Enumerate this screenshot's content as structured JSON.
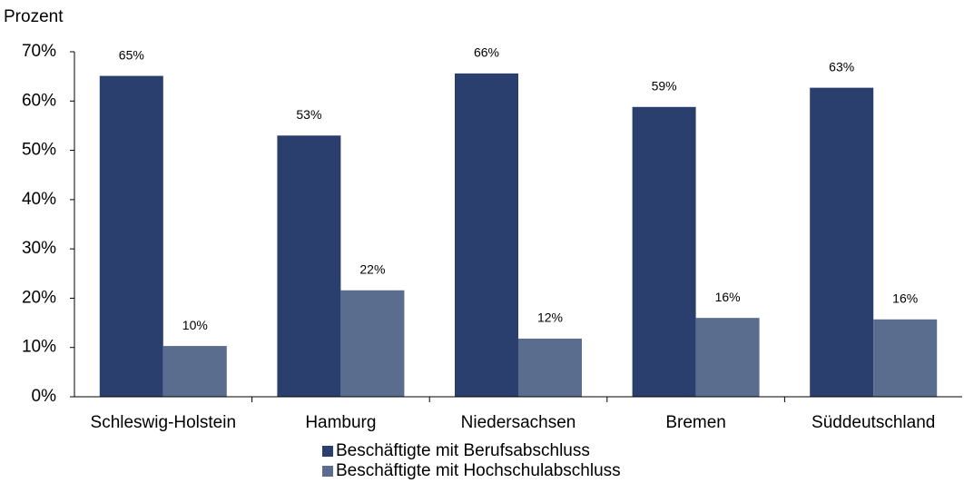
{
  "chart_data": {
    "type": "bar",
    "y_label": "Prozent",
    "categories": [
      "Schleswig-Holstein",
      "Hamburg",
      "Niedersachsen",
      "Bremen",
      "Süddeutschland"
    ],
    "series": [
      {
        "name": "Beschäftigte mit Berufsabschluss",
        "color": "#2b3f6e",
        "values": [
          65.1,
          53.0,
          65.6,
          58.8,
          62.7
        ],
        "value_labels": [
          "65%",
          "53%",
          "66%",
          "59%",
          "63%"
        ]
      },
      {
        "name": "Beschäftigte mit Hochschulabschluss",
        "color": "#5b6d8f",
        "values": [
          10.3,
          21.6,
          11.8,
          16.0,
          15.7
        ],
        "value_labels": [
          "10%",
          "22%",
          "12%",
          "16%",
          "16%"
        ]
      }
    ],
    "ylim": [
      0,
      70
    ],
    "yticks": [
      {
        "value": 0,
        "label": "0%"
      },
      {
        "value": 10,
        "label": "10%"
      },
      {
        "value": 20,
        "label": "20%"
      },
      {
        "value": 30,
        "label": "30%"
      },
      {
        "value": 40,
        "label": "40%"
      },
      {
        "value": 50,
        "label": "50%"
      },
      {
        "value": 60,
        "label": "60%"
      },
      {
        "value": 70,
        "label": "70%"
      }
    ],
    "legend": "bottom"
  }
}
